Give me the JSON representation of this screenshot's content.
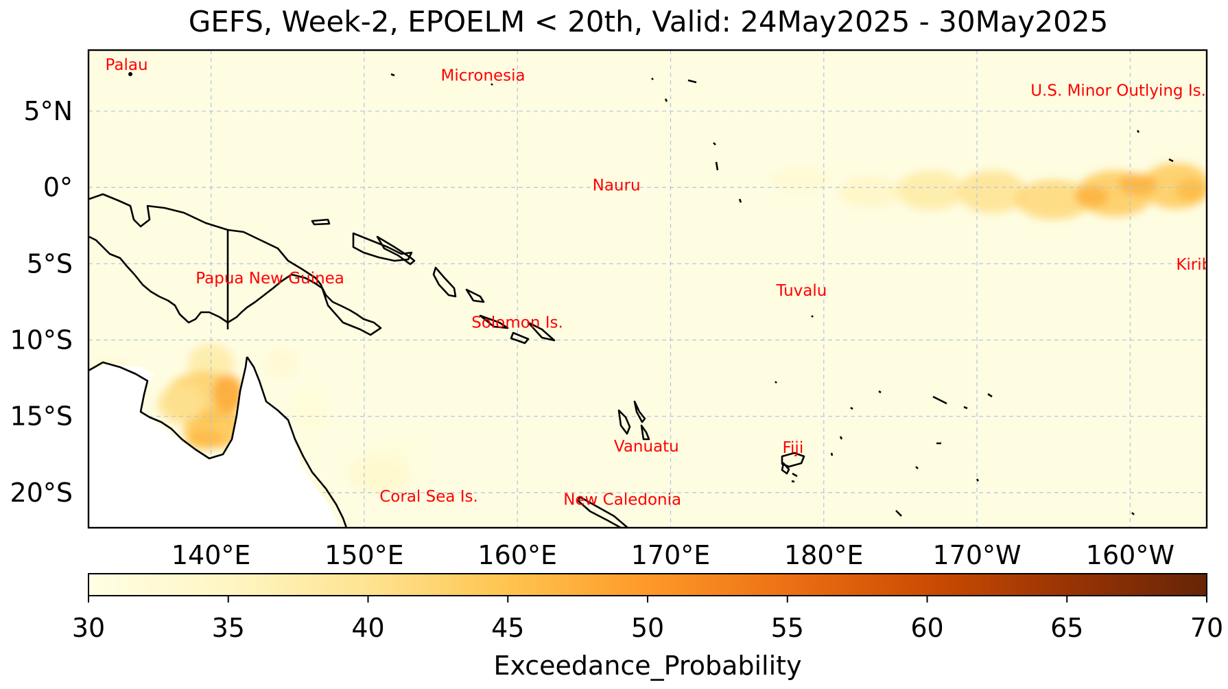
{
  "title": "GEFS, Week-2, EPOELM < 20th, Valid: 24May2025 - 30May2025",
  "map": {
    "background_color": "#fefde2",
    "extent": {
      "lon_min": 132,
      "lon_max": 205,
      "lat_min": -22.3,
      "lat_max": 9
    },
    "lon_ticks": [
      {
        "lon": 140,
        "label": "140°E"
      },
      {
        "lon": 150,
        "label": "150°E"
      },
      {
        "lon": 160,
        "label": "160°E"
      },
      {
        "lon": 170,
        "label": "170°E"
      },
      {
        "lon": 180,
        "label": "180°E"
      },
      {
        "lon": 190,
        "label": "170°W"
      },
      {
        "lon": 200,
        "label": "160°W"
      }
    ],
    "lat_ticks": [
      {
        "lat": 5,
        "label": "5°N"
      },
      {
        "lat": 0,
        "label": "0°"
      },
      {
        "lat": -5,
        "label": "5°S"
      },
      {
        "lat": -10,
        "label": "10°S"
      },
      {
        "lat": -15,
        "label": "15°S"
      },
      {
        "lat": -20,
        "label": "20°S"
      }
    ],
    "country_labels": [
      {
        "name": "Palau",
        "lon": 133.1,
        "lat": 7.7
      },
      {
        "name": "Micronesia",
        "lon": 155.0,
        "lat": 7.0
      },
      {
        "name": "U.S. Minor Outlying Is.",
        "lon": 193.5,
        "lat": 6.0
      },
      {
        "name": "Nauru",
        "lon": 164.9,
        "lat": -0.2
      },
      {
        "name": "Kiribati",
        "lon": 203.0,
        "lat": -5.4
      },
      {
        "name": "Papua New Guinea",
        "lon": 139.0,
        "lat": -6.3
      },
      {
        "name": "Tuvalu",
        "lon": 176.9,
        "lat": -7.1
      },
      {
        "name": "Solomon Is.",
        "lon": 157.0,
        "lat": -9.2
      },
      {
        "name": "Vanuatu",
        "lon": 166.3,
        "lat": -17.3
      },
      {
        "name": "Fiji",
        "lon": 177.3,
        "lat": -17.4
      },
      {
        "name": "Coral Sea Is.",
        "lon": 151.0,
        "lat": -20.6
      },
      {
        "name": "New Caledonia",
        "lon": 163.0,
        "lat": -20.8
      }
    ],
    "label_color": "#ff0000"
  },
  "probability_field": [
    {
      "lon": 178.5,
      "lat": 0.5,
      "dlon": 4,
      "dlat": 1.5,
      "value": 33
    },
    {
      "lon": 183,
      "lat": -0.3,
      "dlon": 4,
      "dlat": 2,
      "value": 35
    },
    {
      "lon": 187,
      "lat": -0.2,
      "dlon": 4.5,
      "dlat": 2.6,
      "value": 38
    },
    {
      "lon": 191,
      "lat": -0.3,
      "dlon": 4.5,
      "dlat": 2.8,
      "value": 40
    },
    {
      "lon": 195,
      "lat": -0.8,
      "dlon": 5,
      "dlat": 2.6,
      "value": 42
    },
    {
      "lon": 199,
      "lat": -0.4,
      "dlon": 5,
      "dlat": 3,
      "value": 44
    },
    {
      "lon": 203,
      "lat": 0.1,
      "dlon": 4.5,
      "dlat": 3,
      "value": 44
    },
    {
      "lon": 197.5,
      "lat": -0.6,
      "dlon": 2.2,
      "dlat": 1.4,
      "value": 47
    },
    {
      "lon": 200.5,
      "lat": 0.2,
      "dlon": 2.5,
      "dlat": 1.4,
      "value": 47
    },
    {
      "lon": 204,
      "lat": -0.2,
      "dlon": 2,
      "dlat": 1.5,
      "value": 46
    },
    {
      "lon": 140,
      "lat": -11.5,
      "dlon": 3,
      "dlat": 2.5,
      "value": 38
    },
    {
      "lon": 139.5,
      "lat": -13.8,
      "dlon": 5,
      "dlat": 3.5,
      "value": 43
    },
    {
      "lon": 140.2,
      "lat": -15.8,
      "dlon": 4,
      "dlat": 2.6,
      "value": 45
    },
    {
      "lon": 138,
      "lat": -14.2,
      "dlon": 3,
      "dlat": 2.5,
      "value": 40
    },
    {
      "lon": 141.1,
      "lat": -13.5,
      "dlon": 2,
      "dlat": 2.5,
      "value": 48
    },
    {
      "lon": 139.6,
      "lat": -16.5,
      "dlon": 2.5,
      "dlat": 1.3,
      "value": 46
    },
    {
      "lon": 144.6,
      "lat": -11.5,
      "dlon": 2,
      "dlat": 2,
      "value": 33
    },
    {
      "lon": 146.5,
      "lat": -14.5,
      "dlon": 2.5,
      "dlat": 3,
      "value": 32
    },
    {
      "lon": 151,
      "lat": -18.8,
      "dlon": 4,
      "dlat": 2.5,
      "value": 34
    },
    {
      "lon": 152,
      "lat": -17.2,
      "dlon": 3,
      "dlat": 1.5,
      "value": 32
    },
    {
      "lon": 146,
      "lat": -20.5,
      "dlon": 4,
      "dlat": 2.5,
      "value": 33
    },
    {
      "lon": 133.5,
      "lat": -12,
      "dlon": 3,
      "dlat": 1.5,
      "value": 33
    }
  ],
  "colorbar": {
    "min": 30,
    "max": 70,
    "ticks": [
      "30",
      "35",
      "40",
      "45",
      "50",
      "55",
      "60",
      "65",
      "70"
    ],
    "label": "Exceedance_Probability",
    "colormap": [
      {
        "v": 30,
        "color": "#fffee5"
      },
      {
        "v": 35,
        "color": "#fff6c4"
      },
      {
        "v": 40,
        "color": "#fee391"
      },
      {
        "v": 45,
        "color": "#fec44f"
      },
      {
        "v": 50,
        "color": "#fe9929"
      },
      {
        "v": 55,
        "color": "#ec7014"
      },
      {
        "v": 60,
        "color": "#cc4c02"
      },
      {
        "v": 65,
        "color": "#993404"
      },
      {
        "v": 70,
        "color": "#662506"
      }
    ]
  }
}
